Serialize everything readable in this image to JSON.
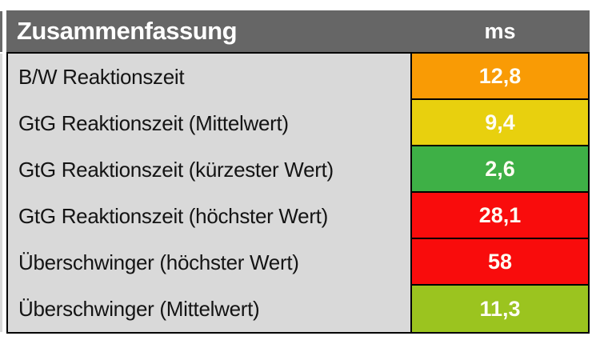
{
  "chart_data": {
    "type": "table",
    "title": "Zusammenfassung",
    "unit_column_header": "ms",
    "rows": [
      {
        "label": "B/W Reaktionszeit",
        "value": "12,8",
        "numeric": 12.8,
        "color": "#f99b05",
        "color_name": "orange"
      },
      {
        "label": "GtG Reaktionszeit (Mittelwert)",
        "value": "9,4",
        "numeric": 9.4,
        "color": "#e8d00e",
        "color_name": "yellow"
      },
      {
        "label": "GtG Reaktionszeit (kürzester Wert)",
        "value": "2,6",
        "numeric": 2.6,
        "color": "#3eb046",
        "color_name": "green"
      },
      {
        "label": "GtG Reaktionszeit (höchster Wert)",
        "value": "28,1",
        "numeric": 28.1,
        "color": "#f90c0c",
        "color_name": "red"
      },
      {
        "label": "Überschwinger (höchster Wert)",
        "value": "58",
        "numeric": 58,
        "color": "#f90c0c",
        "color_name": "red"
      },
      {
        "label": "Überschwinger (Mittelwert)",
        "value": "11,3",
        "numeric": 11.3,
        "color": "#9bc41f",
        "color_name": "yellow-green"
      }
    ],
    "layout_hints": {
      "header_background": "#666666",
      "header_text_color": "#ffffff",
      "body_background": "#d9d9d9",
      "label_text_color": "#141414",
      "value_text_color": "#fffdf2",
      "border_color": "#000000"
    }
  }
}
